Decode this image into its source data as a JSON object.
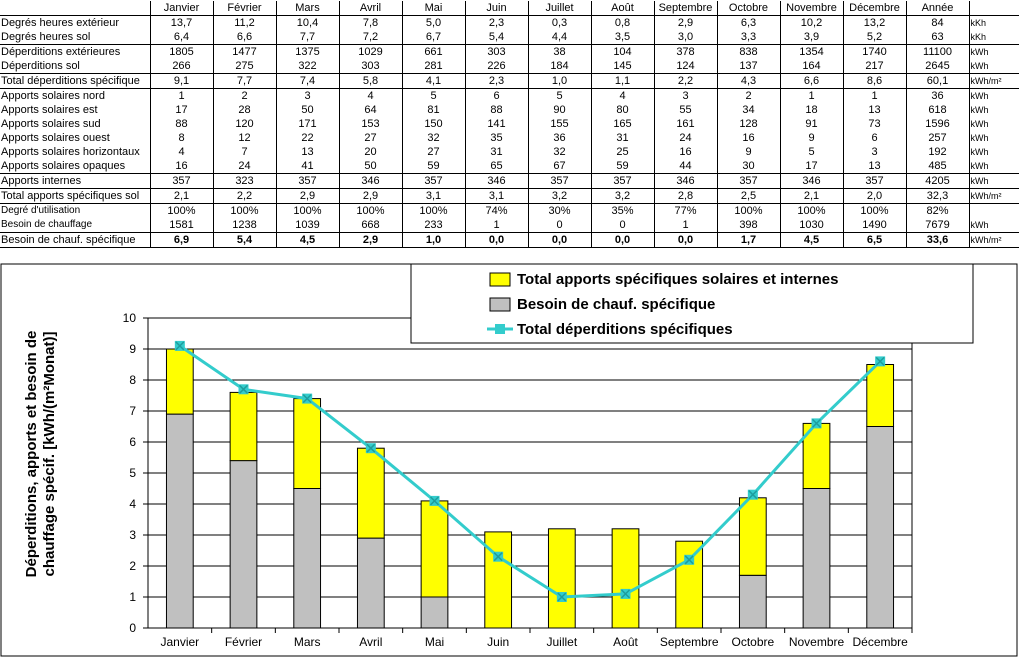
{
  "table": {
    "months": [
      "Janvier",
      "Février",
      "Mars",
      "Avril",
      "Mai",
      "Juin",
      "Juillet",
      "Août",
      "Septembre",
      "Octobre",
      "Novembre",
      "Décembre",
      "Année"
    ],
    "rows": [
      {
        "label": "Degrés heures extérieur",
        "values": [
          "13,7",
          "11,2",
          "10,4",
          "7,8",
          "5,0",
          "2,3",
          "0,3",
          "0,8",
          "2,9",
          "6,3",
          "10,2",
          "13,2",
          "84"
        ],
        "unit": "kKh",
        "style": ""
      },
      {
        "label": "Degrés heures sol",
        "values": [
          "6,4",
          "6,6",
          "7,7",
          "7,2",
          "6,7",
          "5,4",
          "4,4",
          "3,5",
          "3,0",
          "3,3",
          "3,9",
          "5,2",
          "63"
        ],
        "unit": "kKh",
        "style": "sep"
      },
      {
        "label": "Déperditions extérieures",
        "values": [
          "1805",
          "1477",
          "1375",
          "1029",
          "661",
          "303",
          "38",
          "104",
          "378",
          "838",
          "1354",
          "1740",
          "11100"
        ],
        "unit": "kWh",
        "style": ""
      },
      {
        "label": "Déperditions sol",
        "values": [
          "266",
          "275",
          "322",
          "303",
          "281",
          "226",
          "184",
          "145",
          "124",
          "137",
          "164",
          "217",
          "2645"
        ],
        "unit": "kWh",
        "style": "sep"
      },
      {
        "label": "Total déperditions spécifique",
        "values": [
          "9,1",
          "7,7",
          "7,4",
          "5,8",
          "4,1",
          "2,3",
          "1,0",
          "1,1",
          "2,2",
          "4,3",
          "6,6",
          "8,6",
          "60,1"
        ],
        "unit": "kWh/m²",
        "style": "sep"
      },
      {
        "label": "Apports solaires nord",
        "values": [
          "1",
          "2",
          "3",
          "4",
          "5",
          "6",
          "5",
          "4",
          "3",
          "2",
          "1",
          "1",
          "36"
        ],
        "unit": "kWh",
        "style": ""
      },
      {
        "label": "Apports solaires est",
        "values": [
          "17",
          "28",
          "50",
          "64",
          "81",
          "88",
          "90",
          "80",
          "55",
          "34",
          "18",
          "13",
          "618"
        ],
        "unit": "kWh",
        "style": ""
      },
      {
        "label": "Apports solaires sud",
        "values": [
          "88",
          "120",
          "171",
          "153",
          "150",
          "141",
          "155",
          "165",
          "161",
          "128",
          "91",
          "73",
          "1596"
        ],
        "unit": "kWh",
        "style": ""
      },
      {
        "label": "Apports solaires ouest",
        "values": [
          "8",
          "12",
          "22",
          "27",
          "32",
          "35",
          "36",
          "31",
          "24",
          "16",
          "9",
          "6",
          "257"
        ],
        "unit": "kWh",
        "style": ""
      },
      {
        "label": "Apports solaires horizontaux",
        "values": [
          "4",
          "7",
          "13",
          "20",
          "27",
          "31",
          "32",
          "25",
          "16",
          "9",
          "5",
          "3",
          "192"
        ],
        "unit": "kWh",
        "style": ""
      },
      {
        "label": "Apports solaires opaques",
        "values": [
          "16",
          "24",
          "41",
          "50",
          "59",
          "65",
          "67",
          "59",
          "44",
          "30",
          "17",
          "13",
          "485"
        ],
        "unit": "kWh",
        "style": "sep"
      },
      {
        "label": "Apports internes",
        "values": [
          "357",
          "323",
          "357",
          "346",
          "357",
          "346",
          "357",
          "357",
          "346",
          "357",
          "346",
          "357",
          "4205"
        ],
        "unit": "kWh",
        "style": "sep"
      },
      {
        "label": "Total apports spécifiques sol",
        "values": [
          "2,1",
          "2,2",
          "2,9",
          "2,9",
          "3,1",
          "3,1",
          "3,2",
          "3,2",
          "2,8",
          "2,5",
          "2,1",
          "2,0",
          "32,3"
        ],
        "unit": "kWh/m²",
        "style": "sep"
      },
      {
        "label": "Degré d'utilisation",
        "values": [
          "100%",
          "100%",
          "100%",
          "100%",
          "100%",
          "74%",
          "30%",
          "35%",
          "77%",
          "100%",
          "100%",
          "100%",
          "82%"
        ],
        "unit": "",
        "style": "small"
      },
      {
        "label": "Besoin de chauffage",
        "values": [
          "1581",
          "1238",
          "1039",
          "668",
          "233",
          "1",
          "0",
          "0",
          "1",
          "398",
          "1030",
          "1490",
          "7679"
        ],
        "unit": "kWh",
        "style": "small sep"
      },
      {
        "label": "Besoin de chauf. spécifique",
        "values": [
          "6,9",
          "5,4",
          "4,5",
          "2,9",
          "1,0",
          "0,0",
          "0,0",
          "0,0",
          "0,0",
          "1,7",
          "4,5",
          "6,5",
          "33,6"
        ],
        "unit": "kWh/m²",
        "style": "bold sep"
      }
    ]
  },
  "chart_data": {
    "type": "bar",
    "categories": [
      "Janvier",
      "Février",
      "Mars",
      "Avril",
      "Mai",
      "Juin",
      "Juillet",
      "Août",
      "Septembre",
      "Octobre",
      "Novembre",
      "Décembre"
    ],
    "series": [
      {
        "name": "Besoin de chauf. spécifique",
        "kind": "stacked-bar",
        "color": "#c0c0c0",
        "values": [
          6.9,
          5.4,
          4.5,
          2.9,
          1.0,
          0.0,
          0.0,
          0.0,
          0.0,
          1.7,
          4.5,
          6.5
        ]
      },
      {
        "name": "Total apports spécifiques solaires et internes",
        "kind": "stacked-bar",
        "color": "#ffff00",
        "values": [
          2.1,
          2.2,
          2.9,
          2.9,
          3.1,
          3.1,
          3.2,
          3.2,
          2.8,
          2.5,
          2.1,
          2.0
        ]
      },
      {
        "name": "Total déperditions spécifiques",
        "kind": "line",
        "color": "#33cccc",
        "values": [
          9.1,
          7.7,
          7.4,
          5.8,
          4.1,
          2.3,
          1.0,
          1.1,
          2.2,
          4.3,
          6.6,
          8.6
        ]
      }
    ],
    "legend": [
      {
        "label": "Total apports spécifiques solaires et internes",
        "color": "#ffff00",
        "kind": "bar"
      },
      {
        "label": "Besoin de chauf. spécifique",
        "color": "#c0c0c0",
        "kind": "bar"
      },
      {
        "label": "Total déperditions spécifiques",
        "color": "#33cccc",
        "kind": "line"
      }
    ],
    "ylabel_line1": "Déperditions, apports et besoin de",
    "ylabel_line2": "chauffage spécif. [kWh/(m²Monat)]",
    "ylim": [
      0,
      10
    ],
    "yticks": [
      0,
      1,
      2,
      3,
      4,
      5,
      6,
      7,
      8,
      9,
      10
    ],
    "grid": true,
    "legend_position": "top-right"
  }
}
